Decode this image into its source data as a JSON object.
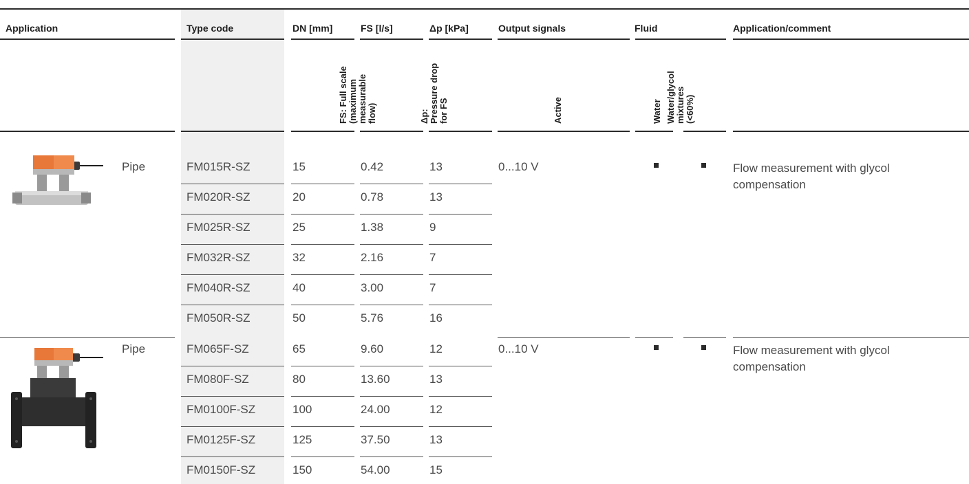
{
  "headers": {
    "application": "Application",
    "type_code": "Type code",
    "dn": "DN [mm]",
    "fs": "FS [l/s]",
    "dp": "Δp [kPa]",
    "output": "Output signals",
    "fluid": "Fluid",
    "comment": "Application/comment"
  },
  "subheaders": {
    "fs": "FS: Full scale\n(maximum\nmeasurable\nflow)",
    "dp": "Δp:\nPressure drop\nfor FS",
    "active": "Active",
    "water": "Water",
    "glycol": "Water/glycol\nmixtures\n(<60%)"
  },
  "groups": [
    {
      "application": "Pipe",
      "image_icon": "threaded-flow-sensor",
      "output": "0...10 V",
      "water": true,
      "glycol": true,
      "comment": "Flow measurement with glycol compensation",
      "rows": [
        {
          "type": "FM015R-SZ",
          "dn": "15",
          "fs": "0.42",
          "dp": "13"
        },
        {
          "type": "FM020R-SZ",
          "dn": "20",
          "fs": "0.78",
          "dp": "13"
        },
        {
          "type": "FM025R-SZ",
          "dn": "25",
          "fs": "1.38",
          "dp": "9"
        },
        {
          "type": "FM032R-SZ",
          "dn": "32",
          "fs": "2.16",
          "dp": "7"
        },
        {
          "type": "FM040R-SZ",
          "dn": "40",
          "fs": "3.00",
          "dp": "7"
        },
        {
          "type": "FM050R-SZ",
          "dn": "50",
          "fs": "5.76",
          "dp": "16"
        }
      ]
    },
    {
      "application": "Pipe",
      "image_icon": "flanged-flow-sensor",
      "output": "0...10 V",
      "water": true,
      "glycol": true,
      "comment": "Flow measurement with glycol compensation",
      "rows": [
        {
          "type": "FM065F-SZ",
          "dn": "65",
          "fs": "9.60",
          "dp": "12"
        },
        {
          "type": "FM080F-SZ",
          "dn": "80",
          "fs": "13.60",
          "dp": "13"
        },
        {
          "type": "FM0100F-SZ",
          "dn": "100",
          "fs": "24.00",
          "dp": "12"
        },
        {
          "type": "FM0125F-SZ",
          "dn": "125",
          "fs": "37.50",
          "dp": "13"
        },
        {
          "type": "FM0150F-SZ",
          "dn": "150",
          "fs": "54.00",
          "dp": "15"
        }
      ]
    }
  ],
  "colors": {
    "accent_orange": "#e8783a",
    "rule": "#2b2b2b",
    "shade": "#f0f0f0"
  }
}
